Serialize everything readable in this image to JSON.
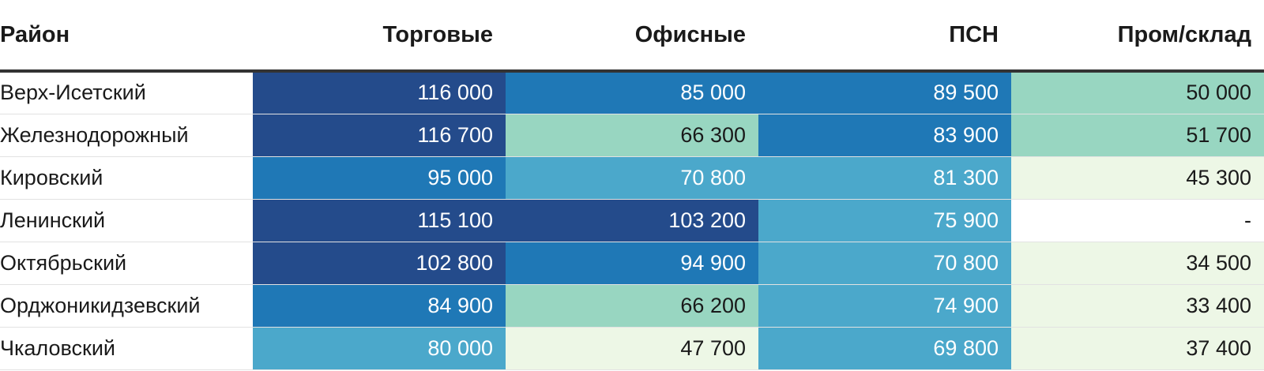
{
  "chart_data": {
    "type": "heatmap",
    "columns": [
      "Район",
      "Торговые",
      "Офисные",
      "ПСН",
      "Пром/склад"
    ],
    "rows": [
      {
        "district": "Верх-Исетский",
        "values": [
          "116 000",
          "85 000",
          "89 500",
          "50 000"
        ],
        "levels": [
          4,
          3,
          3,
          1
        ]
      },
      {
        "district": "Железнодорожный",
        "values": [
          "116 700",
          "66 300",
          "83 900",
          "51 700"
        ],
        "levels": [
          4,
          1,
          3,
          1
        ]
      },
      {
        "district": "Кировский",
        "values": [
          "95 000",
          "70 800",
          "81 300",
          "45 300"
        ],
        "levels": [
          3,
          2,
          2,
          0
        ]
      },
      {
        "district": "Ленинский",
        "values": [
          "115 100",
          "103 200",
          "75 900",
          "-"
        ],
        "levels": [
          4,
          4,
          2,
          -1
        ]
      },
      {
        "district": "Октябрьский",
        "values": [
          "102 800",
          "94 900",
          "70 800",
          "34 500"
        ],
        "levels": [
          4,
          3,
          2,
          0
        ]
      },
      {
        "district": "Орджоникидзевский",
        "values": [
          "84 900",
          "66 200",
          "74 900",
          "33 400"
        ],
        "levels": [
          3,
          1,
          2,
          0
        ]
      },
      {
        "district": "Чкаловский",
        "values": [
          "80 000",
          "47 700",
          "69 800",
          "37 400"
        ],
        "levels": [
          2,
          0,
          2,
          0
        ]
      }
    ]
  },
  "palette": {
    "none": "#ffffff",
    "0": "#edf7e6",
    "1": "#98d6c1",
    "2": "#4ba8cb",
    "3": "#1f78b6",
    "4": "#244b8b"
  },
  "text_colors": {
    "dark": "#1a1a1a",
    "light": "#ffffff"
  }
}
